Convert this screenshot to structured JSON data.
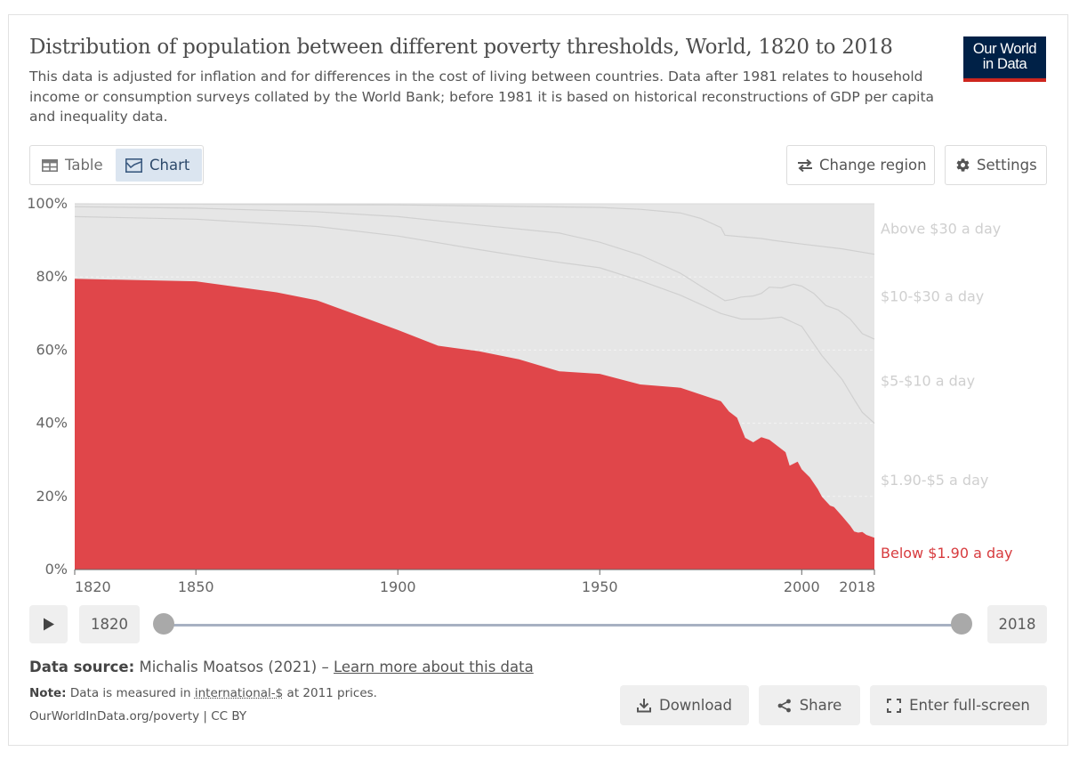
{
  "title": "Distribution of population between different poverty thresholds, World, 1820 to 2018",
  "subtitle": "This data is adjusted for inflation and for differences in the cost of living between countries. Data after 1981 relates to household income or consumption surveys collated by the World Bank; before 1981 it is based on historical reconstructions of GDP per capita and inequality data.",
  "logo": {
    "line1": "Our World",
    "line2": "in Data"
  },
  "tabs": {
    "table": "Table",
    "chart": "Chart"
  },
  "buttons": {
    "change_region": "Change region",
    "settings": "Settings"
  },
  "timeline": {
    "start": "1820",
    "end": "2018"
  },
  "footer": {
    "source_label": "Data source:",
    "source_text": "Michalis Moatsos (2021) –",
    "learn_more": "Learn more about this data",
    "note_label": "Note:",
    "note_pre": "Data is measured in",
    "note_link": "international-$",
    "note_post": "at 2011 prices.",
    "url": "OurWorldInData.org/poverty | CC BY"
  },
  "actions": {
    "download": "Download",
    "share": "Share",
    "fullscreen": "Enter full-screen"
  },
  "colors": {
    "below": "#e0464a",
    "band": "#e6e6e6",
    "band_line": "#d0d0d0",
    "label": "#cfcfcf",
    "accent": "#d73b3e"
  },
  "chart_data": {
    "type": "area",
    "stacked": true,
    "xlim": [
      1820,
      2018
    ],
    "ylim": [
      0,
      100
    ],
    "y_unit": "%",
    "yticks": [
      "0%",
      "20%",
      "40%",
      "60%",
      "80%",
      "100%"
    ],
    "ytick_values": [
      0,
      20,
      40,
      60,
      80,
      100
    ],
    "xticks": [
      1820,
      1850,
      1900,
      1950,
      2000,
      2018
    ],
    "grid": true,
    "legend_placement": "right (inline labels)",
    "cumulative_boundaries": [
      {
        "name": "Below $1.90 a day",
        "points": [
          [
            1820,
            79.5
          ],
          [
            1850,
            78.8
          ],
          [
            1870,
            75.8
          ],
          [
            1880,
            73.6
          ],
          [
            1900,
            65.5
          ],
          [
            1910,
            61.2
          ],
          [
            1920,
            59.7
          ],
          [
            1930,
            57.5
          ],
          [
            1940,
            54.2
          ],
          [
            1950,
            53.5
          ],
          [
            1960,
            50.6
          ],
          [
            1970,
            49.7
          ],
          [
            1980,
            46.0
          ],
          [
            1982,
            43.2
          ],
          [
            1984,
            41.5
          ],
          [
            1986,
            36.0
          ],
          [
            1988,
            34.8
          ],
          [
            1990,
            36.2
          ],
          [
            1992,
            35.5
          ],
          [
            1994,
            33.8
          ],
          [
            1996,
            32.1
          ],
          [
            1997,
            28.4
          ],
          [
            1999,
            29.5
          ],
          [
            2000,
            27.4
          ],
          [
            2002,
            25.2
          ],
          [
            2004,
            22.0
          ],
          [
            2005,
            19.9
          ],
          [
            2007,
            17.5
          ],
          [
            2008,
            17.1
          ],
          [
            2010,
            14.6
          ],
          [
            2012,
            12.0
          ],
          [
            2013,
            10.4
          ],
          [
            2014,
            10.1
          ],
          [
            2015,
            10.3
          ],
          [
            2016,
            9.5
          ],
          [
            2018,
            8.7
          ]
        ]
      },
      {
        "name": "$1.90-$5 a day",
        "points": [
          [
            1820,
            96.5
          ],
          [
            1850,
            95.8
          ],
          [
            1880,
            93.8
          ],
          [
            1900,
            91.2
          ],
          [
            1920,
            87.5
          ],
          [
            1940,
            84.0
          ],
          [
            1950,
            82.5
          ],
          [
            1960,
            79.0
          ],
          [
            1970,
            75.0
          ],
          [
            1980,
            70.0
          ],
          [
            1985,
            68.5
          ],
          [
            1990,
            68.5
          ],
          [
            1995,
            69.0
          ],
          [
            2000,
            66.5
          ],
          [
            2005,
            58.5
          ],
          [
            2010,
            52.0
          ],
          [
            2013,
            46.5
          ],
          [
            2015,
            43.0
          ],
          [
            2018,
            40.0
          ]
        ]
      },
      {
        "name": "$5-$10 a day",
        "points": [
          [
            1820,
            99.2
          ],
          [
            1850,
            98.8
          ],
          [
            1880,
            97.8
          ],
          [
            1900,
            96.5
          ],
          [
            1920,
            94.2
          ],
          [
            1940,
            92.0
          ],
          [
            1950,
            89.5
          ],
          [
            1960,
            86.0
          ],
          [
            1970,
            81.0
          ],
          [
            1975,
            77.5
          ],
          [
            1981,
            73.5
          ],
          [
            1983,
            73.9
          ],
          [
            1985,
            74.5
          ],
          [
            1988,
            74.8
          ],
          [
            1990,
            75.5
          ],
          [
            1992,
            77.2
          ],
          [
            1995,
            77.0
          ],
          [
            1998,
            78.0
          ],
          [
            2000,
            77.5
          ],
          [
            2003,
            75.5
          ],
          [
            2006,
            72.2
          ],
          [
            2009,
            71.0
          ],
          [
            2012,
            68.5
          ],
          [
            2015,
            64.5
          ],
          [
            2018,
            63.0
          ]
        ]
      },
      {
        "name": "$10-$30 a day",
        "points": [
          [
            1820,
            100
          ],
          [
            1850,
            99.9
          ],
          [
            1900,
            99.7
          ],
          [
            1950,
            99.0
          ],
          [
            1960,
            98.5
          ],
          [
            1970,
            97.5
          ],
          [
            1975,
            96.0
          ],
          [
            1980,
            93.5
          ],
          [
            1981,
            91.4
          ],
          [
            1985,
            91.0
          ],
          [
            1990,
            90.5
          ],
          [
            1993,
            90.0
          ],
          [
            2000,
            89.0
          ],
          [
            2010,
            87.7
          ],
          [
            2018,
            86.2
          ]
        ]
      },
      {
        "name": "Above $30 a day",
        "points": [
          [
            1820,
            100
          ],
          [
            2018,
            100
          ]
        ]
      }
    ],
    "series_labels": [
      "Above $30 a day",
      "$10-$30 a day",
      "$5-$10 a day",
      "$1.90-$5 a day",
      "Below $1.90 a day"
    ]
  }
}
